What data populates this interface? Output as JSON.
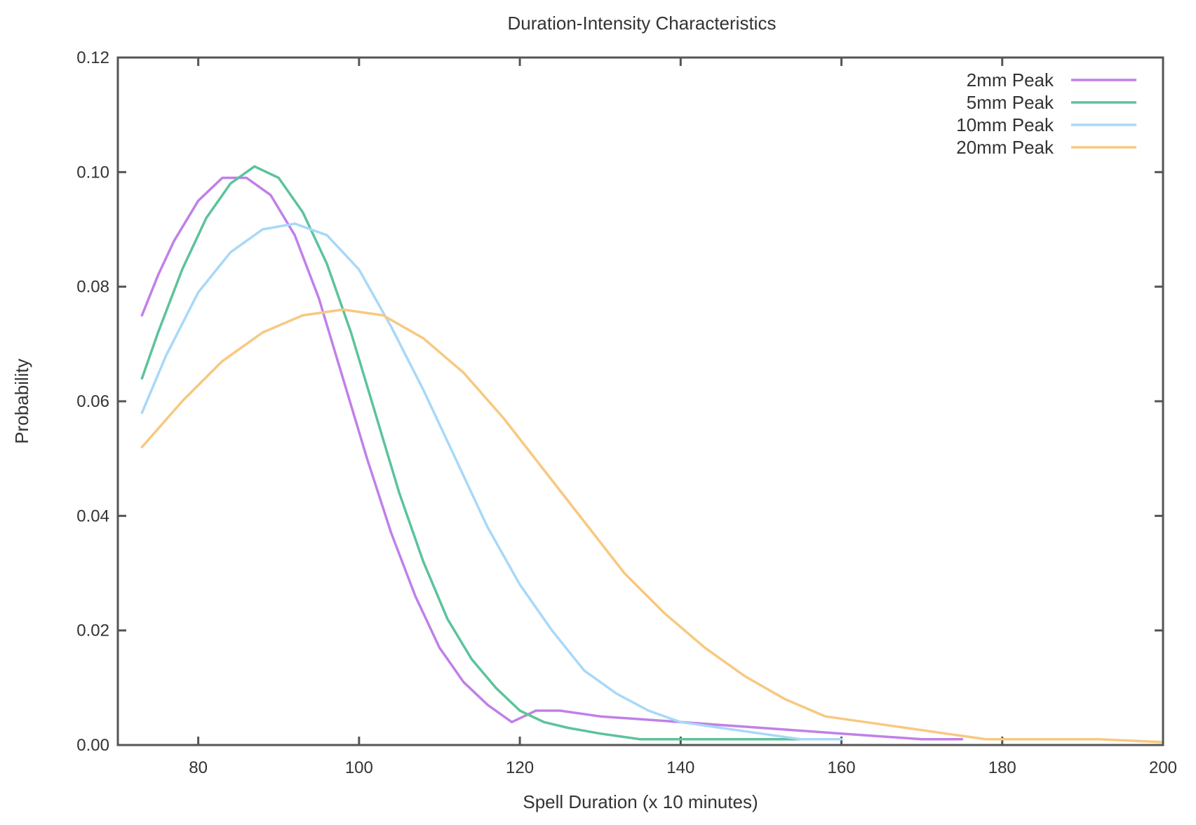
{
  "chart_data": {
    "type": "line",
    "title": "Duration-Intensity Characteristics",
    "xlabel": "Spell Duration (x 10 minutes)",
    "ylabel": "Probability",
    "xlim": [
      70,
      200
    ],
    "ylim": [
      0,
      0.12
    ],
    "x_ticks": [
      "80",
      "100",
      "120",
      "140",
      "160",
      "180",
      "200"
    ],
    "y_ticks": [
      "0.00",
      "0.02",
      "0.04",
      "0.06",
      "0.08",
      "0.10",
      "0.12"
    ],
    "grid": false,
    "legend_position": "top-right",
    "series": [
      {
        "name": "2mm Peak",
        "color": "#c080e8",
        "x": [
          73,
          75,
          77,
          80,
          83,
          86,
          89,
          92,
          95,
          98,
          101,
          104,
          107,
          110,
          113,
          116,
          119,
          122,
          125,
          130,
          140,
          150,
          160,
          170,
          175
        ],
        "y": [
          0.075,
          0.082,
          0.088,
          0.095,
          0.099,
          0.099,
          0.096,
          0.089,
          0.078,
          0.064,
          0.05,
          0.037,
          0.026,
          0.017,
          0.011,
          0.007,
          0.004,
          0.006,
          0.006,
          0.005,
          0.004,
          0.003,
          0.002,
          0.001,
          0.001
        ]
      },
      {
        "name": "5mm Peak",
        "color": "#5cc39a",
        "x": [
          73,
          75,
          78,
          81,
          84,
          87,
          90,
          93,
          96,
          99,
          102,
          105,
          108,
          111,
          114,
          117,
          120,
          123,
          126,
          130,
          135,
          140,
          145,
          150,
          160
        ],
        "y": [
          0.064,
          0.072,
          0.083,
          0.092,
          0.098,
          0.101,
          0.099,
          0.093,
          0.084,
          0.072,
          0.058,
          0.044,
          0.032,
          0.022,
          0.015,
          0.01,
          0.006,
          0.004,
          0.003,
          0.002,
          0.001,
          0.001,
          0.001,
          0.001,
          0.001
        ]
      },
      {
        "name": "10mm Peak",
        "color": "#a8d8f8",
        "x": [
          73,
          76,
          80,
          84,
          88,
          92,
          96,
          100,
          104,
          108,
          112,
          116,
          120,
          124,
          128,
          132,
          136,
          140,
          145,
          150,
          155,
          160
        ],
        "y": [
          0.058,
          0.068,
          0.079,
          0.086,
          0.09,
          0.091,
          0.089,
          0.083,
          0.073,
          0.062,
          0.05,
          0.038,
          0.028,
          0.02,
          0.013,
          0.009,
          0.006,
          0.004,
          0.003,
          0.002,
          0.001,
          0.001
        ]
      },
      {
        "name": "20mm Peak",
        "color": "#f8c880",
        "x": [
          73,
          78,
          83,
          88,
          93,
          98,
          103,
          108,
          113,
          118,
          123,
          128,
          133,
          138,
          143,
          148,
          153,
          158,
          163,
          168,
          173,
          178,
          185,
          192,
          200
        ],
        "y": [
          0.052,
          0.06,
          0.067,
          0.072,
          0.075,
          0.076,
          0.075,
          0.071,
          0.065,
          0.057,
          0.048,
          0.039,
          0.03,
          0.023,
          0.017,
          0.012,
          0.008,
          0.005,
          0.004,
          0.003,
          0.002,
          0.001,
          0.001,
          0.001,
          0.0005
        ]
      }
    ]
  }
}
